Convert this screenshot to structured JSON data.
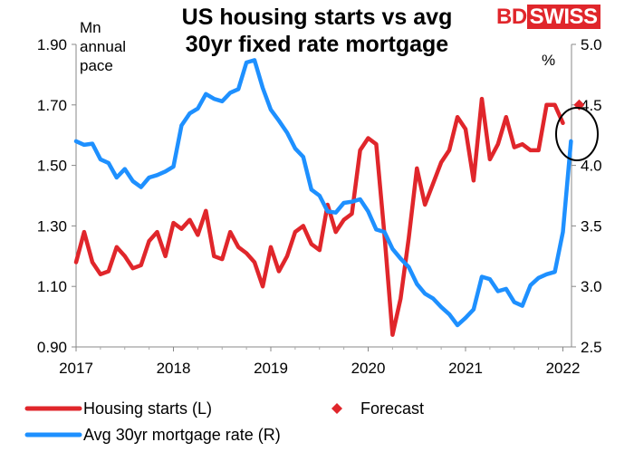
{
  "header": {
    "title_line1": "US housing starts vs avg",
    "title_line2": "30yr fixed rate mortgage",
    "brand_part1": "BD",
    "brand_part2": "SWISS"
  },
  "chart_data": {
    "type": "line",
    "title": "US housing starts vs avg 30yr fixed rate mortgage",
    "left_axis": {
      "unit_label": "Mn annual pace",
      "min": 0.9,
      "max": 1.9,
      "ticks": [
        "0.90",
        "1.10",
        "1.30",
        "1.50",
        "1.70",
        "1.90"
      ]
    },
    "right_axis": {
      "unit_label": "%",
      "min": 2.5,
      "max": 5.0,
      "ticks": [
        "2.5",
        "3.0",
        "3.5",
        "4.0",
        "4.5",
        "5.0"
      ]
    },
    "x_axis": {
      "min": 2017,
      "max": 2022.25,
      "ticks": [
        "2017",
        "2018",
        "2019",
        "2020",
        "2021",
        "2022"
      ]
    },
    "grid": false,
    "legend_position": "bottom-left",
    "series": [
      {
        "name": "Housing starts (L)",
        "axis": "left",
        "color": "#e0262b",
        "x": [
          2017.0,
          2017.083,
          2017.167,
          2017.25,
          2017.333,
          2017.417,
          2017.5,
          2017.583,
          2017.667,
          2017.75,
          2017.833,
          2017.917,
          2018.0,
          2018.083,
          2018.167,
          2018.25,
          2018.333,
          2018.417,
          2018.5,
          2018.583,
          2018.667,
          2018.75,
          2018.833,
          2018.917,
          2019.0,
          2019.083,
          2019.167,
          2019.25,
          2019.333,
          2019.417,
          2019.5,
          2019.583,
          2019.667,
          2019.75,
          2019.833,
          2019.917,
          2020.0,
          2020.083,
          2020.167,
          2020.25,
          2020.333,
          2020.417,
          2020.5,
          2020.583,
          2020.667,
          2020.75,
          2020.833,
          2020.917,
          2021.0,
          2021.083,
          2021.167,
          2021.25,
          2021.333,
          2021.417,
          2021.5,
          2021.583,
          2021.667,
          2021.75,
          2021.833,
          2021.917,
          2022.0
        ],
        "values": [
          1.18,
          1.28,
          1.18,
          1.14,
          1.15,
          1.23,
          1.2,
          1.16,
          1.17,
          1.25,
          1.28,
          1.2,
          1.31,
          1.29,
          1.32,
          1.27,
          1.35,
          1.2,
          1.19,
          1.28,
          1.23,
          1.21,
          1.18,
          1.1,
          1.23,
          1.15,
          1.2,
          1.28,
          1.3,
          1.24,
          1.22,
          1.37,
          1.28,
          1.32,
          1.34,
          1.55,
          1.59,
          1.57,
          1.27,
          0.94,
          1.06,
          1.26,
          1.49,
          1.37,
          1.44,
          1.51,
          1.55,
          1.66,
          1.62,
          1.45,
          1.72,
          1.52,
          1.57,
          1.66,
          1.56,
          1.57,
          1.55,
          1.55,
          1.7,
          1.7,
          1.64
        ]
      },
      {
        "name": "Avg 30yr mortgage rate (R)",
        "axis": "right",
        "color": "#1e90ff",
        "x": [
          2017.0,
          2017.083,
          2017.167,
          2017.25,
          2017.333,
          2017.417,
          2017.5,
          2017.583,
          2017.667,
          2017.75,
          2017.833,
          2017.917,
          2018.0,
          2018.083,
          2018.167,
          2018.25,
          2018.333,
          2018.417,
          2018.5,
          2018.583,
          2018.667,
          2018.75,
          2018.833,
          2018.917,
          2019.0,
          2019.083,
          2019.167,
          2019.25,
          2019.333,
          2019.417,
          2019.5,
          2019.583,
          2019.667,
          2019.75,
          2019.833,
          2019.917,
          2020.0,
          2020.083,
          2020.167,
          2020.25,
          2020.333,
          2020.417,
          2020.5,
          2020.583,
          2020.667,
          2020.75,
          2020.833,
          2020.917,
          2021.0,
          2021.083,
          2021.167,
          2021.25,
          2021.333,
          2021.417,
          2021.5,
          2021.583,
          2021.667,
          2021.75,
          2021.833,
          2021.917,
          2022.0,
          2022.083
        ],
        "values": [
          4.2,
          4.17,
          4.18,
          4.05,
          4.02,
          3.9,
          3.97,
          3.87,
          3.82,
          3.9,
          3.92,
          3.95,
          3.99,
          4.33,
          4.43,
          4.47,
          4.59,
          4.55,
          4.53,
          4.6,
          4.63,
          4.85,
          4.87,
          4.64,
          4.46,
          4.37,
          4.27,
          4.14,
          4.07,
          3.8,
          3.75,
          3.62,
          3.61,
          3.69,
          3.7,
          3.72,
          3.62,
          3.47,
          3.45,
          3.31,
          3.23,
          3.16,
          3.02,
          2.94,
          2.9,
          2.83,
          2.77,
          2.68,
          2.74,
          2.81,
          3.08,
          3.06,
          2.96,
          2.98,
          2.87,
          2.84,
          3.01,
          3.07,
          3.1,
          3.12,
          3.45,
          4.2
        ]
      }
    ],
    "forecast": {
      "name": "Forecast",
      "color": "#e0262b",
      "x": 2022.167,
      "value": 1.7
    }
  }
}
